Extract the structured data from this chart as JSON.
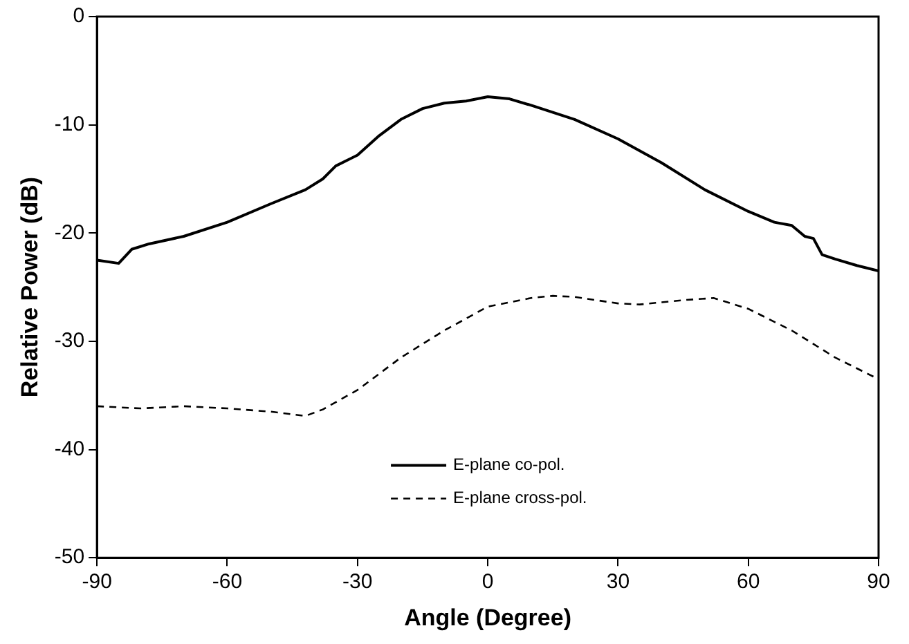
{
  "chart_data": {
    "type": "line",
    "xlabel": "Angle (Degree)",
    "ylabel": "Relative Power (dB)",
    "xlim": [
      -90,
      90
    ],
    "xticks": [
      -90,
      -60,
      -30,
      0,
      30,
      60,
      90
    ],
    "ylim": [
      -50,
      0
    ],
    "yticks": [
      -50,
      -40,
      -30,
      -20,
      -10,
      0
    ],
    "grid": false,
    "legend": "bottom",
    "marker": "none",
    "series": [
      {
        "name": "E-plane co-pol.",
        "color": "#000000",
        "line_style": "solid",
        "x": [
          -90,
          -85,
          -82,
          -78,
          -70,
          -60,
          -50,
          -42,
          -38,
          -35,
          -30,
          -25,
          -20,
          -15,
          -10,
          -5,
          0,
          5,
          10,
          20,
          30,
          40,
          50,
          60,
          66,
          70,
          73,
          75,
          77,
          80,
          85,
          90
        ],
        "values": [
          -22.5,
          -22.8,
          -21.5,
          -21,
          -20.3,
          -19,
          -17.3,
          -16,
          -15,
          -13.8,
          -12.8,
          -11,
          -9.5,
          -8.5,
          -8,
          -7.8,
          -7.4,
          -7.6,
          -8.2,
          -9.5,
          -11.3,
          -13.5,
          -16,
          -18,
          -19,
          -19.3,
          -20.3,
          -20.5,
          -22,
          -22.4,
          -23,
          -23.5
        ]
      },
      {
        "name": "E-plane cross-pol.",
        "color": "#000000",
        "line_style": "dashed",
        "x": [
          -90,
          -80,
          -70,
          -60,
          -50,
          -42,
          -38,
          -30,
          -20,
          -10,
          0,
          10,
          15,
          20,
          30,
          35,
          45,
          52,
          60,
          70,
          80,
          90
        ],
        "values": [
          -36,
          -36.2,
          -36,
          -36.2,
          -36.5,
          -36.9,
          -36.3,
          -34.5,
          -31.5,
          -29,
          -26.8,
          -26,
          -25.8,
          -25.9,
          -26.5,
          -26.6,
          -26.2,
          -26,
          -27,
          -29,
          -31.5,
          -33.5
        ]
      }
    ]
  }
}
